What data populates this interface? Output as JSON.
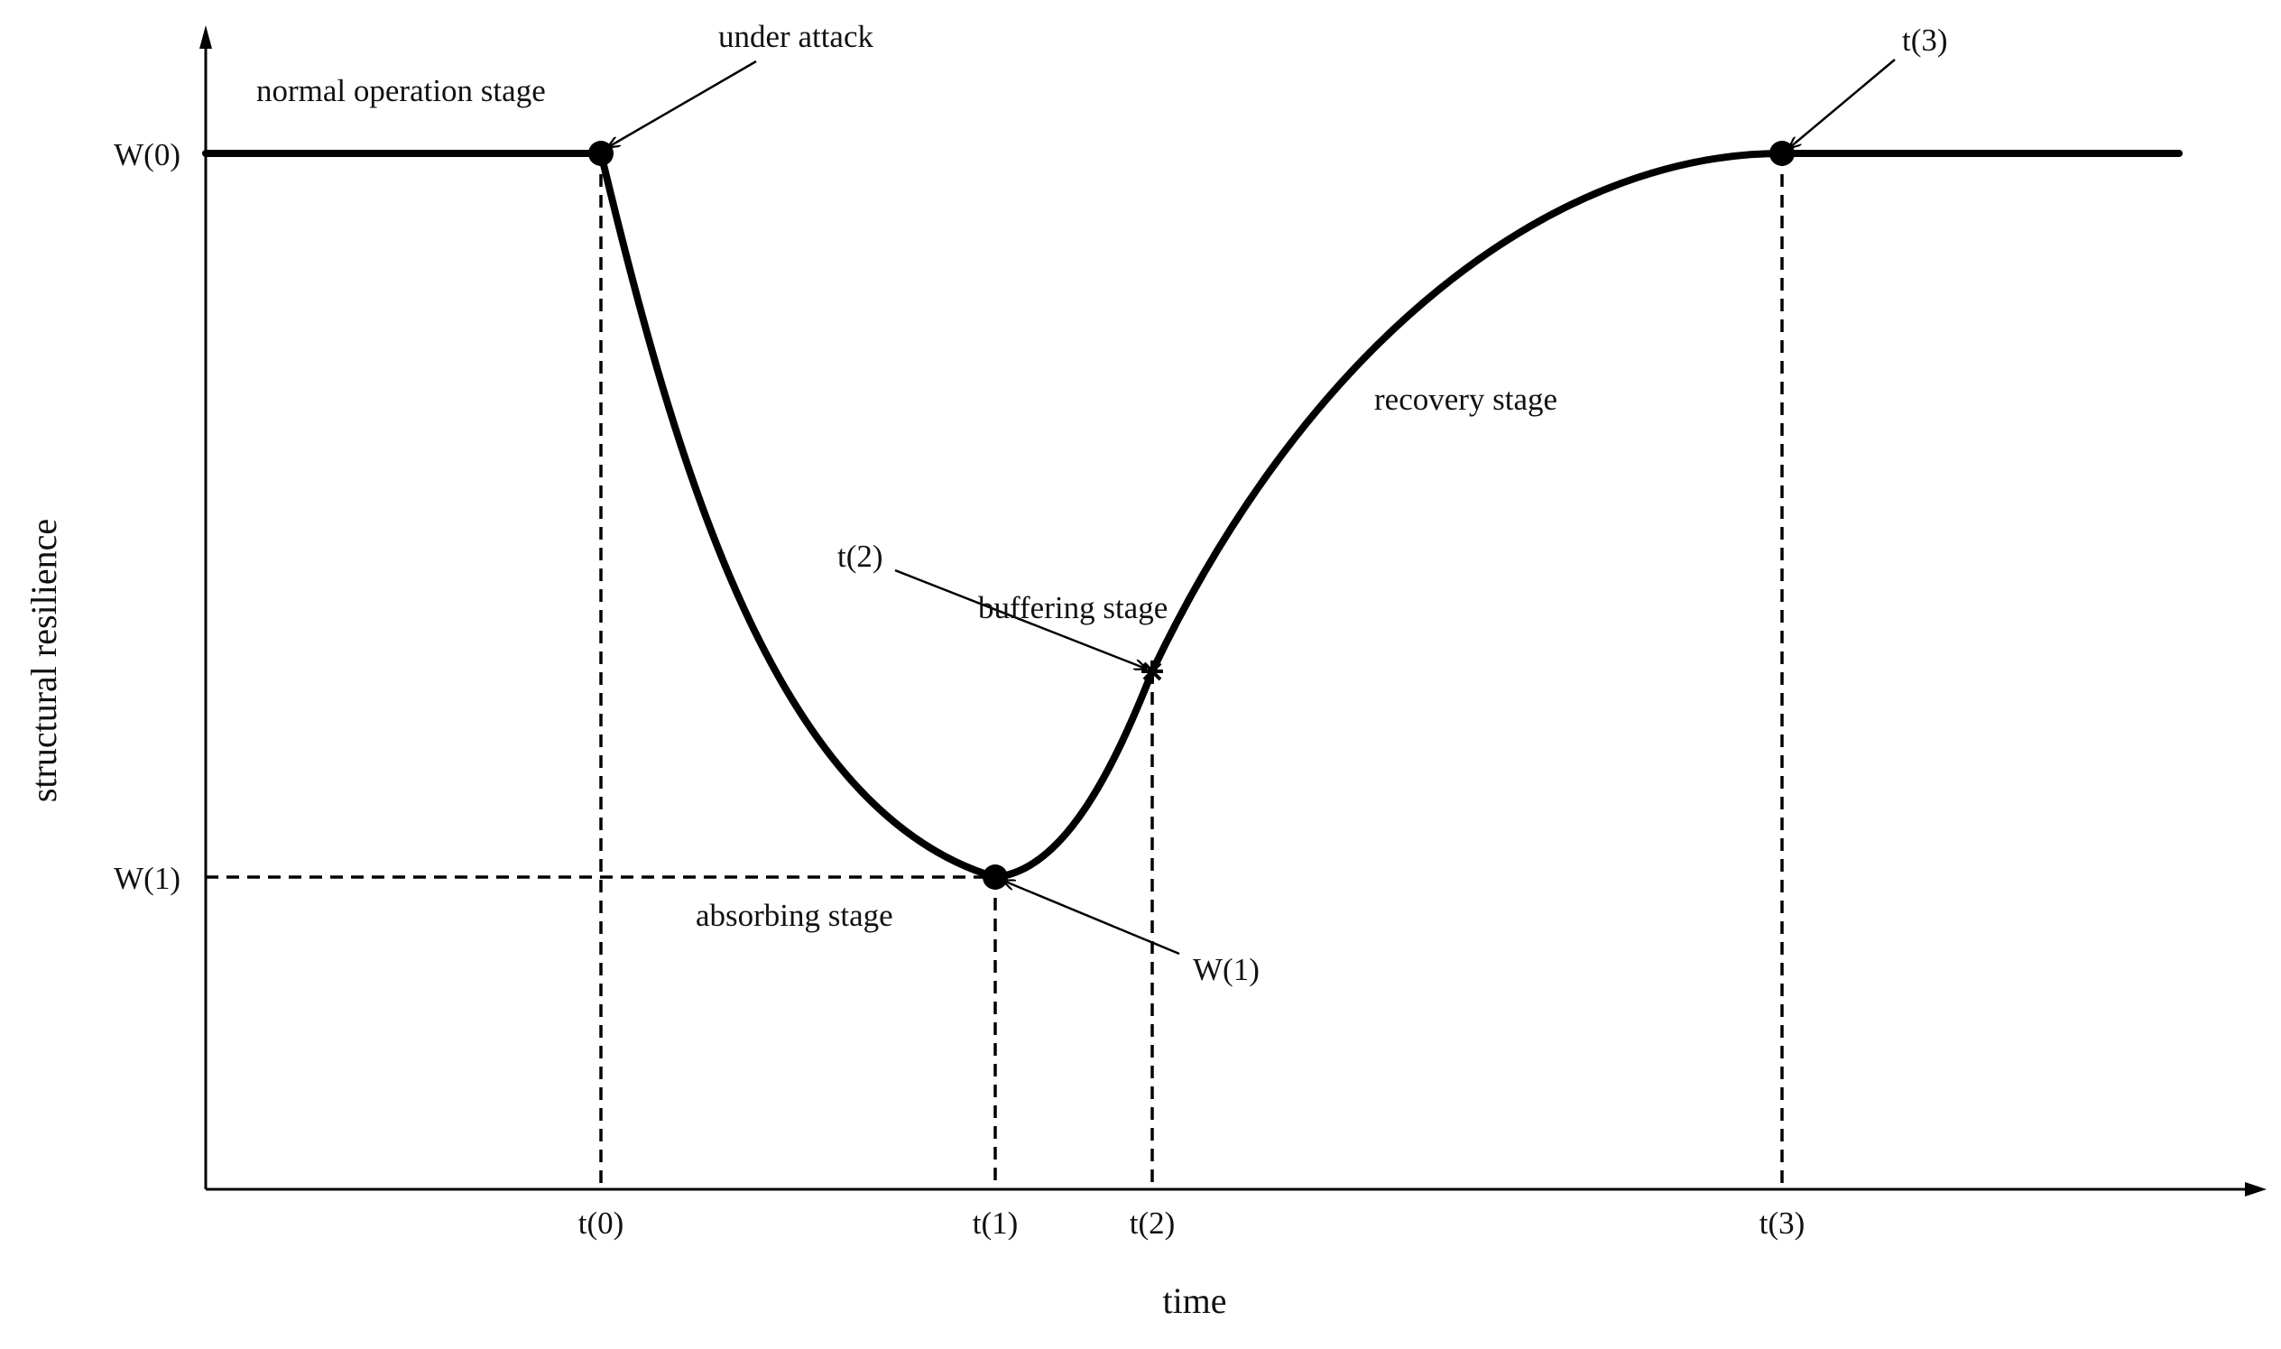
{
  "diagram": {
    "axes": {
      "x_title": "time",
      "y_title": "structural resilience"
    },
    "y_ticks": [
      "W(0)",
      "W(1)"
    ],
    "x_ticks": [
      "t(0)",
      "t(1)",
      "t(2)",
      "t(3)"
    ],
    "stage_labels": {
      "normal": "normal operation stage",
      "absorbing": "absorbing stage",
      "buffering": "buffering stage",
      "recovery": "recovery stage"
    },
    "annotations": {
      "under_attack": "under attack",
      "t2": "t(2)",
      "w1": "W(1)",
      "t3": "t(3)"
    },
    "colors": {
      "curve": "#000000",
      "text": "#111111"
    }
  }
}
